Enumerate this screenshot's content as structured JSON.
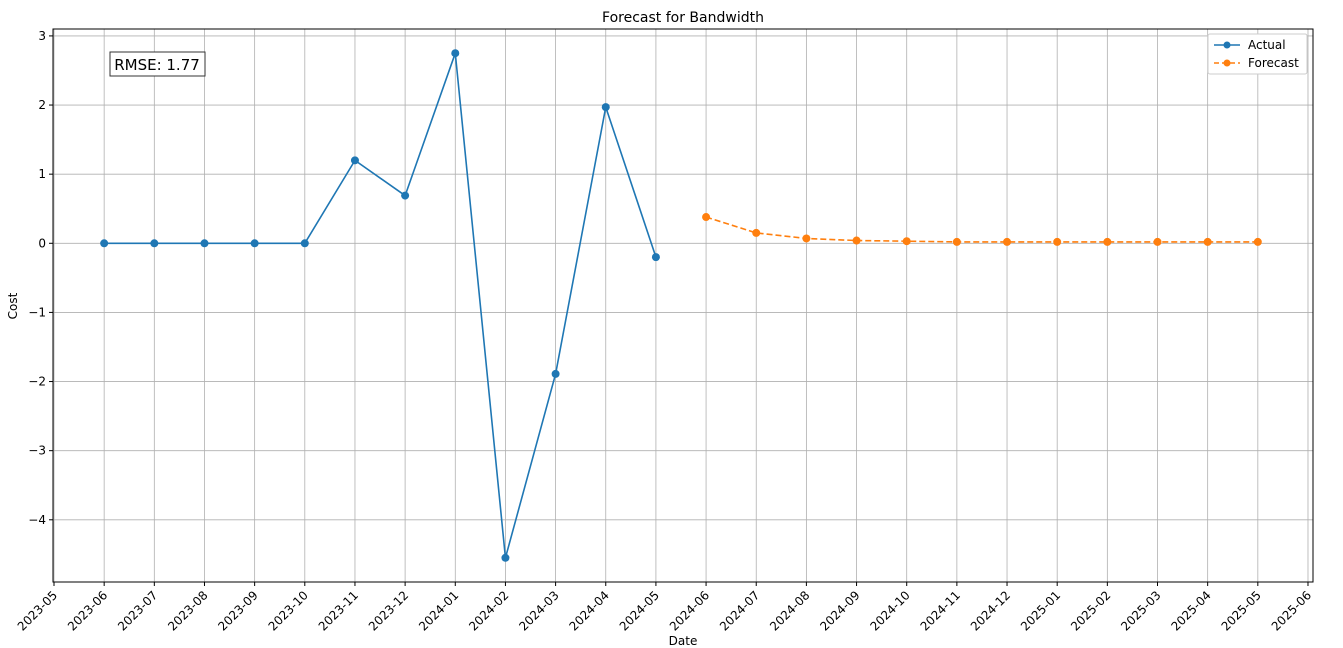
{
  "chart_data": {
    "type": "line",
    "title": "Forecast for Bandwidth",
    "xlabel": "Date",
    "ylabel": "Cost",
    "annotation": "RMSE: 1.77",
    "legend_position": "top-right",
    "grid": true,
    "xlim": [
      "2023-05",
      "2025-06"
    ],
    "ylim": [
      -4.9,
      3.1
    ],
    "x_ticks": [
      "2023-05",
      "2023-06",
      "2023-07",
      "2023-08",
      "2023-09",
      "2023-10",
      "2023-11",
      "2023-12",
      "2024-01",
      "2024-02",
      "2024-03",
      "2024-04",
      "2024-05",
      "2024-06",
      "2024-07",
      "2024-08",
      "2024-09",
      "2024-10",
      "2024-11",
      "2024-12",
      "2025-01",
      "2025-02",
      "2025-03",
      "2025-04",
      "2025-05",
      "2025-06"
    ],
    "y_ticks": [
      3,
      2,
      1,
      0,
      -1,
      -2,
      -3,
      -4
    ],
    "y_tick_labels": [
      "3",
      "2",
      "1",
      "0",
      "−1",
      "−2",
      "−3",
      "−4"
    ],
    "series": [
      {
        "name": "Actual",
        "color": "#1f77b4",
        "style": "solid",
        "x": [
          "2023-06",
          "2023-07",
          "2023-08",
          "2023-09",
          "2023-10",
          "2023-11",
          "2023-12",
          "2024-01",
          "2024-02",
          "2024-03",
          "2024-04",
          "2024-05"
        ],
        "values": [
          0.0,
          0.0,
          0.0,
          0.0,
          0.0,
          1.2,
          0.69,
          2.75,
          -4.55,
          -1.89,
          1.97,
          -0.2
        ]
      },
      {
        "name": "Forecast",
        "color": "#ff7f0e",
        "style": "dashed",
        "x": [
          "2024-06",
          "2024-07",
          "2024-08",
          "2024-09",
          "2024-10",
          "2024-11",
          "2024-12",
          "2025-01",
          "2025-02",
          "2025-03",
          "2025-04",
          "2025-05"
        ],
        "values": [
          0.38,
          0.15,
          0.07,
          0.04,
          0.03,
          0.02,
          0.02,
          0.02,
          0.02,
          0.02,
          0.02,
          0.02
        ]
      }
    ]
  }
}
